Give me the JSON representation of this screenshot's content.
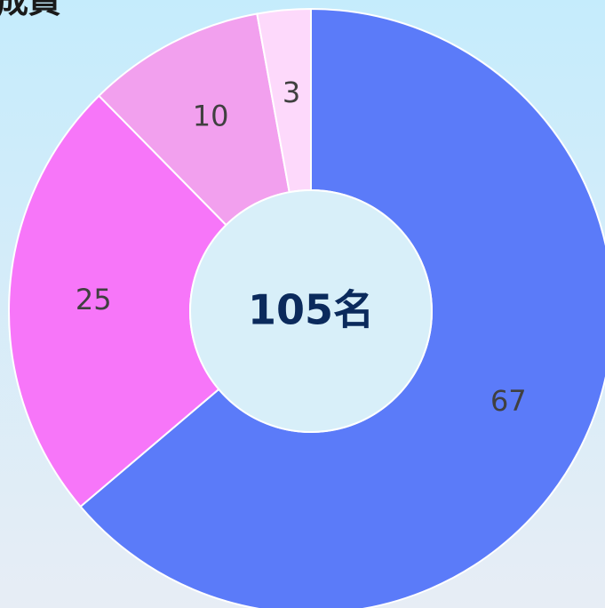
{
  "chart_data": {
    "type": "donut",
    "title": "成員",
    "center_label": "105名",
    "categories": [
      null,
      null,
      null,
      null
    ],
    "values": [
      67,
      25,
      10,
      3
    ],
    "colors": [
      "#5b7bf9",
      "#f776f9",
      "#f2a0ee",
      "#fdd9fb"
    ]
  }
}
